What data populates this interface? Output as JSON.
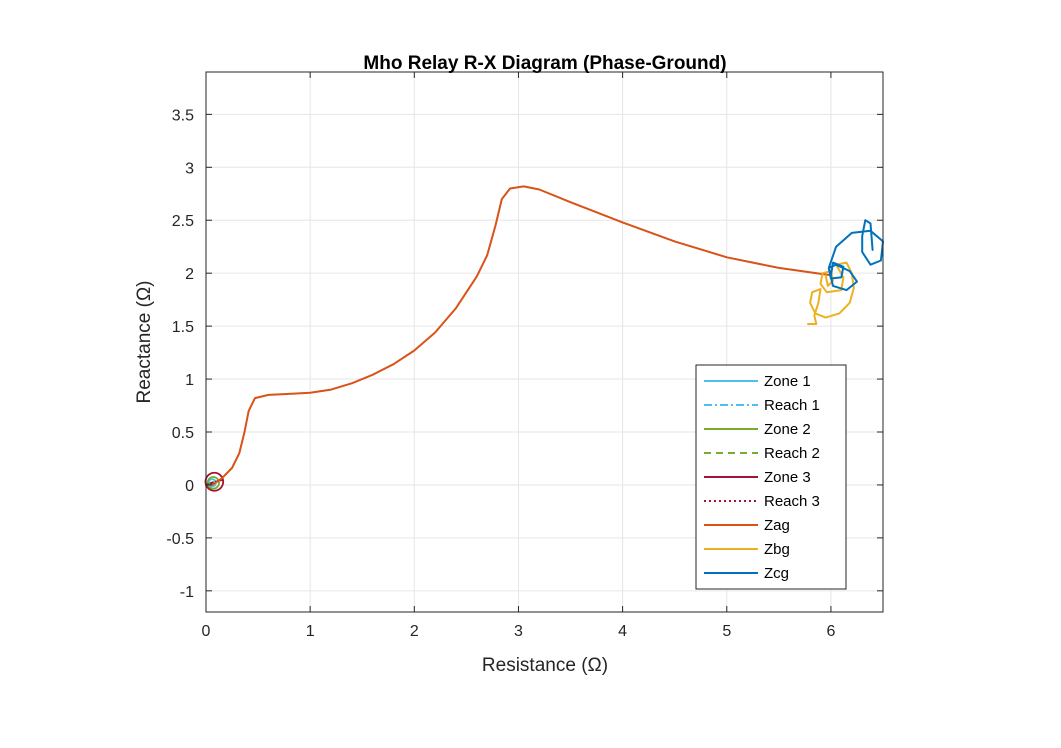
{
  "chart_data": {
    "type": "line",
    "title": "Mho Relay R-X Diagram (Phase-Ground)",
    "xlabel": "Resistance (Ω)",
    "ylabel": "Reactance (Ω)",
    "xlim": [
      0,
      6.5
    ],
    "ylim": [
      -1.2,
      3.9
    ],
    "xticks": [
      0,
      1,
      2,
      3,
      4,
      5,
      6
    ],
    "xtick_labels": [
      "0",
      "1",
      "2",
      "3",
      "4",
      "5",
      "6"
    ],
    "yticks": [
      -1,
      -0.5,
      0,
      0.5,
      1,
      1.5,
      2,
      2.5,
      3,
      3.5
    ],
    "ytick_labels": [
      "-1",
      "-0.5",
      "0",
      "0.5",
      "1",
      "1.5",
      "2",
      "2.5",
      "3",
      "3.5"
    ],
    "grid": true,
    "legend_position": "bottom-right",
    "series": [
      {
        "name": "Zone 1",
        "color": "#4DBEEE",
        "style": "solid",
        "circle": {
          "cx": 0.06,
          "cy": 0.02,
          "r": 0.035
        },
        "points": []
      },
      {
        "name": "Reach 1",
        "color": "#4DBEEE",
        "style": "dashdot",
        "points": [
          [
            0,
            0
          ],
          [
            0.07,
            0.03
          ]
        ]
      },
      {
        "name": "Zone 2",
        "color": "#77AC30",
        "style": "solid",
        "circle": {
          "cx": 0.07,
          "cy": 0.02,
          "r": 0.055
        },
        "points": []
      },
      {
        "name": "Reach 2",
        "color": "#77AC30",
        "style": "dashed",
        "points": [
          [
            0,
            0
          ],
          [
            0.12,
            0.04
          ]
        ]
      },
      {
        "name": "Zone 3",
        "color": "#A2142F",
        "style": "solid",
        "circle": {
          "cx": 0.08,
          "cy": 0.03,
          "r": 0.085
        },
        "points": []
      },
      {
        "name": "Reach 3",
        "color": "#A2142F",
        "style": "dotted",
        "points": [
          [
            0,
            0
          ],
          [
            0.16,
            0.05
          ]
        ]
      },
      {
        "name": "Zag",
        "color": "#D95319",
        "style": "solid",
        "points": [
          [
            0.06,
            0.0
          ],
          [
            0.15,
            0.06
          ],
          [
            0.25,
            0.16
          ],
          [
            0.32,
            0.3
          ],
          [
            0.37,
            0.5
          ],
          [
            0.41,
            0.7
          ],
          [
            0.47,
            0.82
          ],
          [
            0.6,
            0.85
          ],
          [
            0.8,
            0.86
          ],
          [
            1.0,
            0.87
          ],
          [
            1.2,
            0.9
          ],
          [
            1.4,
            0.96
          ],
          [
            1.6,
            1.04
          ],
          [
            1.8,
            1.14
          ],
          [
            2.0,
            1.27
          ],
          [
            2.2,
            1.44
          ],
          [
            2.4,
            1.67
          ],
          [
            2.6,
            1.97
          ],
          [
            2.7,
            2.17
          ],
          [
            2.78,
            2.45
          ],
          [
            2.84,
            2.7
          ],
          [
            2.92,
            2.8
          ],
          [
            3.05,
            2.82
          ],
          [
            3.2,
            2.79
          ],
          [
            3.5,
            2.67
          ],
          [
            4.0,
            2.48
          ],
          [
            4.5,
            2.3
          ],
          [
            5.0,
            2.15
          ],
          [
            5.5,
            2.05
          ],
          [
            6.0,
            1.98
          ]
        ]
      },
      {
        "name": "Zbg",
        "color": "#EDB120",
        "style": "solid",
        "points": [
          [
            5.95,
            1.98
          ],
          [
            5.97,
            1.88
          ],
          [
            6.02,
            1.93
          ],
          [
            6.0,
            2.02
          ],
          [
            5.92,
            2.0
          ],
          [
            5.9,
            1.9
          ],
          [
            5.96,
            1.82
          ],
          [
            6.1,
            1.84
          ],
          [
            6.12,
            1.96
          ],
          [
            6.05,
            2.08
          ],
          [
            6.15,
            2.1
          ],
          [
            6.2,
            2.0
          ],
          [
            6.22,
            1.86
          ],
          [
            6.18,
            1.72
          ],
          [
            6.08,
            1.62
          ],
          [
            5.95,
            1.58
          ],
          [
            5.85,
            1.62
          ],
          [
            5.8,
            1.72
          ],
          [
            5.82,
            1.82
          ],
          [
            5.9,
            1.85
          ],
          [
            5.88,
            1.72
          ],
          [
            5.84,
            1.6
          ],
          [
            5.86,
            1.52
          ],
          [
            5.78,
            1.52
          ]
        ]
      },
      {
        "name": "Zcg",
        "color": "#0072BD",
        "style": "solid",
        "points": [
          [
            6.0,
            1.98
          ],
          [
            6.02,
            2.1
          ],
          [
            6.12,
            2.06
          ],
          [
            6.1,
            1.96
          ],
          [
            6.0,
            1.95
          ],
          [
            5.98,
            2.05
          ],
          [
            6.05,
            2.08
          ],
          [
            6.18,
            2.02
          ],
          [
            6.25,
            1.92
          ],
          [
            6.15,
            1.84
          ],
          [
            6.02,
            1.88
          ],
          [
            5.98,
            2.05
          ],
          [
            6.05,
            2.25
          ],
          [
            6.2,
            2.38
          ],
          [
            6.38,
            2.4
          ],
          [
            6.5,
            2.3
          ],
          [
            6.48,
            2.12
          ],
          [
            6.38,
            2.08
          ],
          [
            6.3,
            2.2
          ],
          [
            6.3,
            2.35
          ],
          [
            6.33,
            2.5
          ],
          [
            6.38,
            2.47
          ],
          [
            6.4,
            2.22
          ]
        ]
      }
    ]
  }
}
